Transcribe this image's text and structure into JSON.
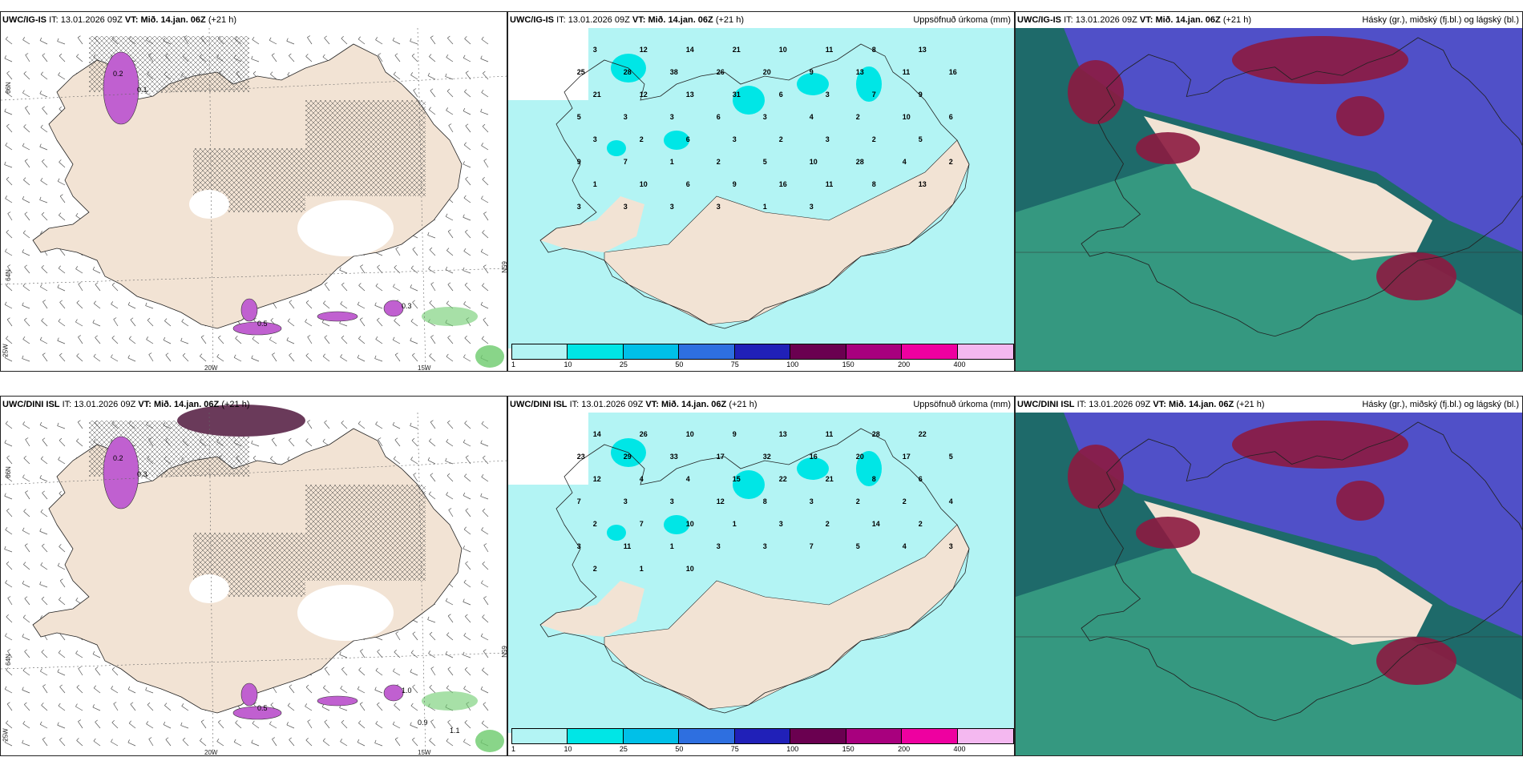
{
  "panels": [
    {
      "id": "top-left",
      "model": "UWC/IG-IS",
      "it_label": "IT:",
      "it": "13.01.2026 09Z",
      "vt_label": "VT:",
      "vt": "Mið. 14.jan. 06Z",
      "lead": "(+21 h)",
      "right": ""
    },
    {
      "id": "top-mid",
      "model": "UWC/IG-IS",
      "it_label": "IT:",
      "it": "13.01.2026 09Z",
      "vt_label": "VT:",
      "vt": "Mið. 14.jan. 06Z",
      "lead": "(+21 h)",
      "right": "Uppsöfnuð úrkoma (mm)"
    },
    {
      "id": "top-right",
      "model": "UWC/IG-IS",
      "it_label": "IT:",
      "it": "13.01.2026 09Z",
      "vt_label": "VT:",
      "vt": "Mið. 14.jan. 06Z",
      "lead": "(+21 h)",
      "right": "Hásky (gr.), miðský (fj.bl.) og lágský (bl.)"
    },
    {
      "id": "bot-left",
      "model": "UWC/DINI ISL",
      "it_label": "IT:",
      "it": "13.01.2026 09Z",
      "vt_label": "VT:",
      "vt": "Mið. 14.jan. 06Z",
      "lead": "(+21 h)",
      "right": ""
    },
    {
      "id": "bot-mid",
      "model": "UWC/DINI ISL",
      "it_label": "IT:",
      "it": "13.01.2026 09Z",
      "vt_label": "VT:",
      "vt": "Mið. 14.jan. 06Z",
      "lead": "(+21 h)",
      "right": "Uppsöfnuð úrkoma (mm)"
    },
    {
      "id": "bot-right",
      "model": "UWC/DINI ISL",
      "it_label": "IT:",
      "it": "13.01.2026 09Z",
      "vt_label": "VT:",
      "vt": "Mið. 14.jan. 06Z",
      "lead": "(+21 h)",
      "right": "Hásky (gr.), miðský (fj.bl.) og lágský (bl.)"
    }
  ],
  "axis_labels": {
    "lat66": "66N",
    "lat64": "64N",
    "lon25": "25W",
    "lon20": "20W",
    "lon15": "15W",
    "lat65": "65N"
  },
  "colorbar": {
    "labels": [
      "1",
      "10",
      "25",
      "50",
      "75",
      "100",
      "150",
      "200",
      "400"
    ],
    "colors": [
      "#b3f4f4",
      "#00e6e6",
      "#00c0e8",
      "#2e6fe0",
      "#2020b8",
      "#6a0050",
      "#a8007e",
      "#ee00a0",
      "#f4b8f0"
    ]
  },
  "precip_top": [
    "3",
    "12",
    "14",
    "21",
    "10",
    "11",
    "8",
    "13",
    "25",
    "28",
    "38",
    "26",
    "20",
    "9",
    "13",
    "11",
    "16",
    "21",
    "12",
    "13",
    "31",
    "6",
    "3",
    "7",
    "9",
    "5",
    "3",
    "3",
    "6",
    "3",
    "4",
    "2",
    "10",
    "6",
    "3",
    "2",
    "6",
    "3",
    "2",
    "3",
    "2",
    "5",
    "9",
    "7",
    "1",
    "2",
    "5",
    "10",
    "28",
    "4",
    "2",
    "1",
    "10",
    "6",
    "9",
    "16",
    "11",
    "8",
    "13",
    "3",
    "3",
    "3",
    "3",
    "1",
    "3"
  ],
  "precip_bot": [
    "14",
    "26",
    "10",
    "9",
    "13",
    "11",
    "28",
    "22",
    "23",
    "29",
    "33",
    "17",
    "32",
    "16",
    "20",
    "17",
    "5",
    "12",
    "4",
    "4",
    "15",
    "22",
    "21",
    "8",
    "6",
    "7",
    "3",
    "3",
    "12",
    "8",
    "3",
    "2",
    "2",
    "4",
    "2",
    "7",
    "10",
    "1",
    "3",
    "2",
    "14",
    "2",
    "3",
    "11",
    "1",
    "3",
    "3",
    "7",
    "5",
    "4",
    "3",
    "2",
    "1",
    "10"
  ],
  "contour_labels_top": [
    "0.2",
    "0.1",
    "0.5",
    "0.3"
  ],
  "contour_labels_bot": [
    "0.2",
    "0.3",
    "0.5",
    "1.0",
    "0.9",
    "1.1"
  ],
  "colors": {
    "land": "#f2e3d4",
    "sea": "#ffffff",
    "precip_light": "#b3f4f4",
    "precip_med": "#00e6e6",
    "cloud_blue": "#5050c8",
    "cloud_dark": "#1e6a6a",
    "cloud_green": "#3aa084",
    "cloud_red": "#8c1a40",
    "snow_purple": "#c060d0",
    "rain_green": "#6ccb6c"
  }
}
